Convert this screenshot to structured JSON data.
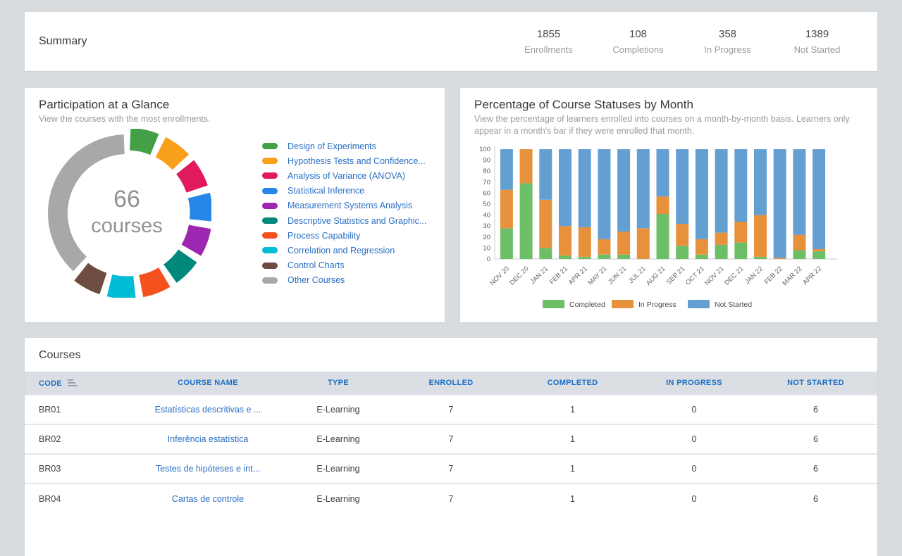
{
  "summary": {
    "title": "Summary",
    "stats": [
      {
        "value": "1855",
        "label": "Enrollments"
      },
      {
        "value": "108",
        "label": "Completions"
      },
      {
        "value": "358",
        "label": "In Progress"
      },
      {
        "value": "1389",
        "label": "Not Started"
      }
    ]
  },
  "participation": {
    "title": "Participation at a Glance",
    "subtitle": "View the courses with the most enrollments.",
    "center_value": "66",
    "center_label": "courses"
  },
  "statuses": {
    "title": "Percentage of Course Statuses by Month",
    "subtitle": "View the percentage of learners enrolled into courses on a month-by-month basis. Learners only appear in a month's bar if they were enrolled that month."
  },
  "chart_data": [
    {
      "type": "pie",
      "variant": "donut",
      "title": "Participation at a Glance",
      "center_text": "66 courses",
      "segments": [
        {
          "label": "Design of Experiments",
          "color": "#43a047",
          "sweep_deg": 20
        },
        {
          "label": "Hypothesis Tests and Confidence...",
          "color": "#f9a01b",
          "sweep_deg": 20
        },
        {
          "label": "Analysis of Variance (ANOVA)",
          "color": "#e1195f",
          "sweep_deg": 20
        },
        {
          "label": "Statistical Inference",
          "color": "#2787e9",
          "sweep_deg": 20
        },
        {
          "label": "Measurement Systems Analysis",
          "color": "#9c27b0",
          "sweep_deg": 20
        },
        {
          "label": "Descriptive Statistics and Graphic...",
          "color": "#00897b",
          "sweep_deg": 20
        },
        {
          "label": "Process Capability",
          "color": "#f4511e",
          "sweep_deg": 20
        },
        {
          "label": "Correlation and Regression",
          "color": "#00bcd4",
          "sweep_deg": 20
        },
        {
          "label": "Control Charts",
          "color": "#6d4c41",
          "sweep_deg": 20
        },
        {
          "label": "Other Courses",
          "color": "#a8a8a8",
          "sweep_deg": 135
        }
      ]
    },
    {
      "type": "bar",
      "variant": "stacked-percent",
      "title": "Percentage of Course Statuses by Month",
      "ylim": [
        0,
        100
      ],
      "ytick_step": 10,
      "categories": [
        "NOV 20",
        "DEC 20",
        "JAN 21",
        "FEB 21",
        "APR 21",
        "MAY 21",
        "JUN 21",
        "JUL 21",
        "AUG 21",
        "SEP 21",
        "OCT 21",
        "NOV 21",
        "DEC 21",
        "JAN 22",
        "FEB 22",
        "MAR 22",
        "APR 22"
      ],
      "series": [
        {
          "name": "Completed",
          "color": "#6dbf67",
          "values": [
            28,
            69,
            10,
            3,
            2,
            4,
            4,
            0,
            41,
            12,
            4,
            13,
            15,
            2,
            0,
            8,
            7
          ]
        },
        {
          "name": "In Progress",
          "color": "#e8913c",
          "values": [
            35,
            31,
            44,
            27,
            27,
            14,
            21,
            28,
            16,
            20,
            14,
            11,
            19,
            38,
            1,
            14,
            2
          ]
        },
        {
          "name": "Not Started",
          "color": "#649fd2",
          "values": [
            37,
            0,
            46,
            70,
            71,
            82,
            75,
            72,
            43,
            68,
            82,
            76,
            66,
            60,
            99,
            78,
            91
          ]
        }
      ],
      "legend_position": "bottom"
    }
  ],
  "courses": {
    "title": "Courses",
    "columns": [
      "CODE",
      "COURSE NAME",
      "TYPE",
      "ENROLLED",
      "COMPLETED",
      "IN PROGRESS",
      "NOT STARTED"
    ],
    "rows": [
      {
        "code": "BR01",
        "name": "Estatísticas descritivas e ...",
        "type": "E-Learning",
        "enrolled": "7",
        "completed": "1",
        "in_progress": "0",
        "not_started": "6"
      },
      {
        "code": "BR02",
        "name": "Inferência estatística",
        "type": "E-Learning",
        "enrolled": "7",
        "completed": "1",
        "in_progress": "0",
        "not_started": "6"
      },
      {
        "code": "BR03",
        "name": "Testes de hipóteses e int...",
        "type": "E-Learning",
        "enrolled": "7",
        "completed": "1",
        "in_progress": "0",
        "not_started": "6"
      },
      {
        "code": "BR04",
        "name": "Cartas de controle",
        "type": "E-Learning",
        "enrolled": "7",
        "completed": "1",
        "in_progress": "0",
        "not_started": "6"
      }
    ]
  }
}
